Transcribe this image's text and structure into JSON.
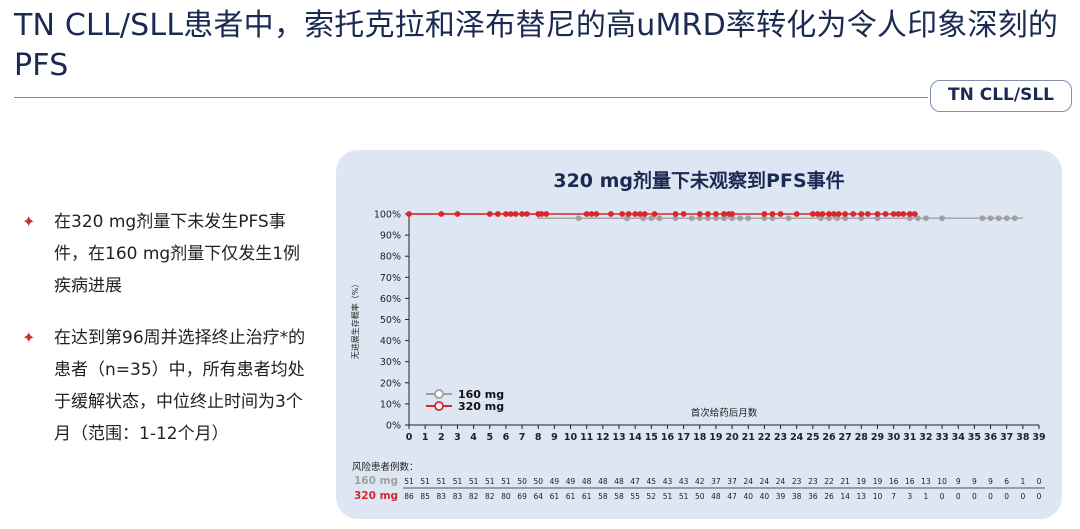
{
  "title": "TN CLL/SLL患者中，索托克拉和泽布替尼的高uMRD率转化为令人印象深刻的PFS",
  "tag": "TN CLL/SLL",
  "bullets": [
    "在320 mg剂量下未发生PFS事件，在160 mg剂量下仅发生1例疾病进展",
    "在达到第96周并选择终止治疗*的患者（n=35）中，所有患者均处于缓解状态，中位终止时间为3个月（范围：1-12个月）"
  ],
  "colors": {
    "title": "#1b2a52",
    "accent": "#c0392b",
    "panel": "#dde6f2",
    "series_160": "#a0a0a0",
    "series_320": "#d9262a"
  },
  "chart_data": {
    "type": "line",
    "title": "320 mg剂量下未观察到PFS事件",
    "xlabel": "首次给药后月数",
    "ylabel": "无进展生存概率（%）",
    "xlim": [
      0,
      39
    ],
    "ylim": [
      0,
      100
    ],
    "x_ticks": [
      "0",
      "1",
      "2",
      "3",
      "4",
      "5",
      "6",
      "7",
      "8",
      "9",
      "10",
      "11",
      "12",
      "13",
      "14",
      "15",
      "16",
      "17",
      "18",
      "19",
      "20",
      "21",
      "22",
      "23",
      "24",
      "25",
      "26",
      "27",
      "28",
      "29",
      "30",
      "31",
      "32",
      "33",
      "34",
      "35",
      "36",
      "37",
      "38",
      "39"
    ],
    "y_ticks": [
      "0%",
      "10%",
      "20%",
      "30%",
      "40%",
      "50%",
      "60%",
      "70%",
      "80%",
      "90%",
      "100%"
    ],
    "legend": {
      "placement": "bottom-left",
      "entries": [
        "160 mg",
        "320 mg"
      ]
    },
    "series": [
      {
        "name": "160 mg",
        "color": "#a0a0a0",
        "steps": [
          [
            0,
            100
          ],
          [
            8,
            100
          ],
          [
            8,
            98
          ],
          [
            38,
            98
          ]
        ],
        "censor_x": [
          10.5,
          13.5,
          14.5,
          15,
          15.5,
          16.5,
          17.5,
          18,
          18.5,
          19,
          19.5,
          20,
          20.5,
          21,
          22,
          22.5,
          23.5,
          25.5,
          26,
          26.5,
          27,
          28,
          29,
          31,
          31.5,
          32,
          33,
          35.5,
          36,
          36.5,
          37,
          37.5
        ]
      },
      {
        "name": "320 mg",
        "color": "#d9262a",
        "steps": [
          [
            0,
            100
          ],
          [
            31.5,
            100
          ]
        ],
        "censor_x": [
          0,
          2,
          3,
          5,
          5.5,
          6,
          6.3,
          6.6,
          7,
          7.3,
          8,
          8.2,
          8.5,
          11,
          11.3,
          11.6,
          12.5,
          13.2,
          13.6,
          14,
          14.3,
          14.6,
          15.2,
          16.5,
          17,
          18,
          18.5,
          19,
          19.5,
          19.8,
          20,
          22,
          22.5,
          23,
          24,
          25,
          25.3,
          25.6,
          26,
          26.3,
          26.6,
          27,
          27.5,
          28,
          28.4,
          29,
          29.5,
          30,
          30.3,
          30.6,
          31,
          31.3
        ]
      }
    ],
    "risk_table": {
      "header": "风险患者例数：",
      "rows": [
        {
          "label": "160 mg",
          "color": "#a0a0a0",
          "values": [
            "51",
            "51",
            "51",
            "51",
            "51",
            "51",
            "51",
            "50",
            "50",
            "49",
            "49",
            "48",
            "48",
            "48",
            "47",
            "45",
            "43",
            "43",
            "42",
            "37",
            "37",
            "24",
            "24",
            "24",
            "23",
            "23",
            "22",
            "21",
            "19",
            "19",
            "16",
            "16",
            "13",
            "10",
            "9",
            "9",
            "9",
            "6",
            "1",
            "0"
          ]
        },
        {
          "label": "320 mg",
          "color": "#d9262a",
          "values": [
            "86",
            "85",
            "83",
            "83",
            "82",
            "82",
            "80",
            "69",
            "64",
            "61",
            "61",
            "61",
            "58",
            "58",
            "55",
            "52",
            "51",
            "51",
            "50",
            "48",
            "47",
            "40",
            "40",
            "39",
            "38",
            "36",
            "26",
            "14",
            "13",
            "10",
            "7",
            "3",
            "1",
            "0",
            "0",
            "0",
            "0",
            "0",
            "0",
            "0"
          ]
        }
      ]
    }
  }
}
